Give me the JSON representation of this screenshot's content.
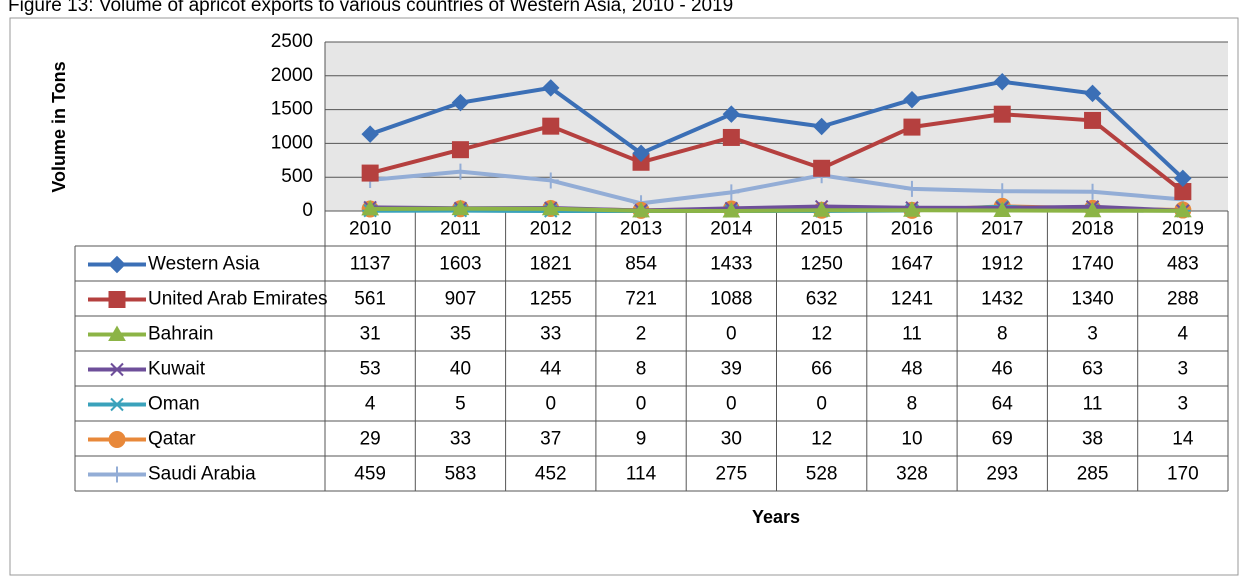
{
  "chart_data": {
    "type": "line",
    "title": "Figure 13: Volume of apricot exports to various countries of Western Asia, 2010 - 2019",
    "y_label": "Volume in Tons",
    "x_label": "Years",
    "categories": [
      "2010",
      "2011",
      "2012",
      "2013",
      "2014",
      "2015",
      "2016",
      "2017",
      "2018",
      "2019"
    ],
    "ylim": [
      0,
      2500
    ],
    "yticks": [
      0,
      500,
      1000,
      1500,
      2000,
      2500
    ],
    "grid": true,
    "series": [
      {
        "name": "Western Asia",
        "color": "#3b6fb6",
        "marker": "diamond",
        "values": [
          1137,
          1603,
          1821,
          854,
          1433,
          1250,
          1647,
          1912,
          1740,
          483
        ]
      },
      {
        "name": "United Arab Emirates",
        "color": "#b5403f",
        "marker": "square",
        "values": [
          561,
          907,
          1255,
          721,
          1088,
          632,
          1241,
          1432,
          1340,
          288
        ]
      },
      {
        "name": "Bahrain",
        "color": "#8cb446",
        "marker": "triangle",
        "values": [
          31,
          35,
          33,
          2,
          0,
          12,
          11,
          8,
          3,
          4
        ]
      },
      {
        "name": "Kuwait",
        "color": "#6e4f9a",
        "marker": "x",
        "values": [
          53,
          40,
          44,
          8,
          39,
          66,
          48,
          46,
          63,
          3
        ]
      },
      {
        "name": "Oman",
        "color": "#3aa2bb",
        "marker": "star",
        "values": [
          4,
          5,
          0,
          0,
          0,
          0,
          8,
          64,
          11,
          3
        ]
      },
      {
        "name": "Qatar",
        "color": "#e8883a",
        "marker": "circle",
        "values": [
          29,
          33,
          37,
          9,
          30,
          12,
          10,
          69,
          38,
          14
        ]
      },
      {
        "name": "Saudi Arabia",
        "color": "#93add6",
        "marker": "plus",
        "values": [
          459,
          583,
          452,
          114,
          275,
          528,
          328,
          293,
          285,
          170
        ]
      }
    ]
  }
}
